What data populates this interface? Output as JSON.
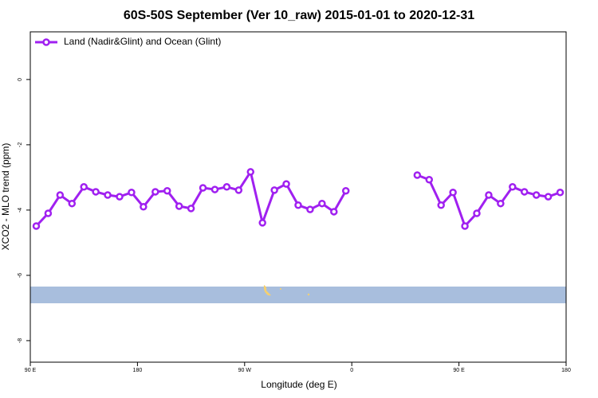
{
  "chart_data": {
    "type": "line",
    "title": "60S-50S September (Ver 10_raw)   2015-01-01 to 2020-12-31",
    "x_label": "Longitude (deg E)",
    "y_label": "XCO2 - MLO trend (ppm)",
    "x": [
      95,
      105,
      115,
      125,
      135,
      145,
      155,
      165,
      175,
      185,
      195,
      205,
      215,
      225,
      235,
      245,
      255,
      265,
      275,
      285,
      295,
      305,
      315,
      325,
      335,
      345,
      355,
      365,
      375,
      385,
      395,
      405,
      415,
      425,
      435,
      445,
      455,
      465,
      475,
      485,
      495,
      505,
      515,
      525,
      535
    ],
    "series": [
      {
        "name": "Land (Nadir&Glint) and Ocean (Glint)",
        "color": "#a020f0",
        "values": [
          -4.49,
          -4.1,
          -3.54,
          -3.8,
          -3.29,
          -3.44,
          -3.54,
          -3.59,
          -3.46,
          -3.9,
          -3.44,
          -3.41,
          -3.88,
          -3.95,
          -3.32,
          -3.37,
          -3.29,
          -3.39,
          -2.83,
          -4.39,
          -3.39,
          -3.2,
          -3.85,
          -3.98,
          -3.8,
          -4.05,
          -3.41,
          null,
          null,
          null,
          null,
          null,
          -2.93,
          -3.07,
          -3.85,
          -3.46,
          -4.49,
          -4.1,
          -3.54,
          -3.8,
          -3.29,
          -3.44,
          -3.54,
          -3.59,
          -3.46
        ]
      }
    ],
    "xlim": [
      90,
      540
    ],
    "xticks": [
      {
        "value": 90,
        "label": "90 E"
      },
      180,
      {
        "value": 270,
        "label": "90 W"
      },
      {
        "value": 360,
        "label": "0"
      },
      {
        "value": 450,
        "label": "90 E"
      },
      {
        "value": 540,
        "label": "180"
      }
    ],
    "ylim": [
      -8.66,
      1.46
    ],
    "yticks": [
      0,
      -2,
      -4,
      -6,
      -8
    ],
    "legend": "top-left"
  }
}
